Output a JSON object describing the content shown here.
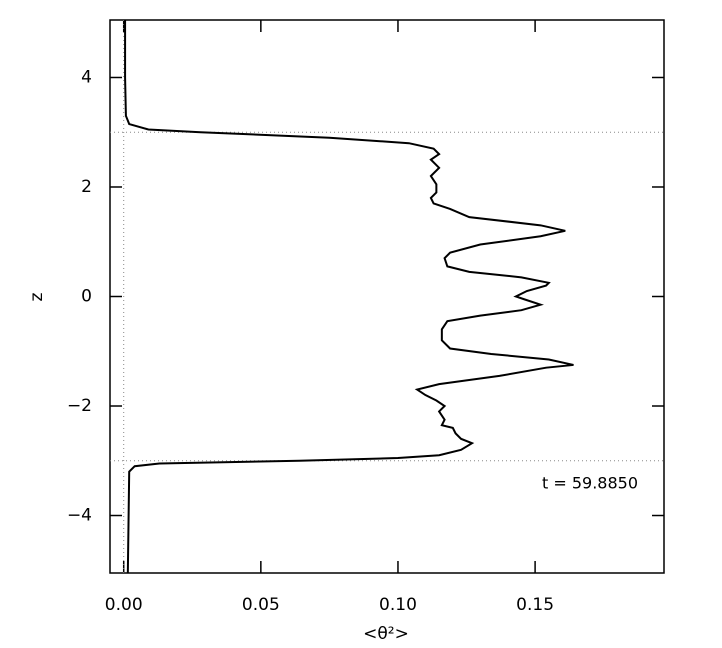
{
  "chart_data": {
    "type": "line",
    "xlabel": "<θ²>",
    "ylabel": "z",
    "annotation": "t = 59.8850",
    "xlim": [
      -0.005,
      0.197
    ],
    "ylim": [
      -5.05,
      5.05
    ],
    "xticks": [
      {
        "value": 0,
        "label": "0.00"
      },
      0.05,
      {
        "value": 0.1,
        "label": "0.10"
      },
      0.15
    ],
    "yticks": [
      -4,
      -2,
      0,
      2,
      4
    ],
    "hlines": [
      3,
      -3
    ],
    "vlines": [
      0
    ],
    "series": [
      {
        "color": "#000000",
        "x": [
          0.0015,
          0.002,
          0.004,
          0.013,
          0.064,
          0.1,
          0.115,
          0.123,
          0.127,
          0.123,
          0.121,
          0.12,
          0.116,
          0.117,
          0.115,
          0.117,
          0.114,
          0.11,
          0.107,
          0.115,
          0.137,
          0.154,
          0.164,
          0.155,
          0.134,
          0.119,
          0.116,
          0.116,
          0.118,
          0.13,
          0.145,
          0.152,
          0.146,
          0.143,
          0.147,
          0.154,
          0.155,
          0.145,
          0.126,
          0.118,
          0.117,
          0.119,
          0.13,
          0.152,
          0.161,
          0.152,
          0.126,
          0.119,
          0.113,
          0.112,
          0.114,
          0.114,
          0.112,
          0.115,
          0.112,
          0.115,
          0.113,
          0.104,
          0.075,
          0.028,
          0.009,
          0.002,
          0.0008,
          0.0005,
          0.0005
        ],
        "values": [
          -5.05,
          -3.2,
          -3.1,
          -3.05,
          -3.0,
          -2.95,
          -2.9,
          -2.8,
          -2.68,
          -2.6,
          -2.5,
          -2.4,
          -2.35,
          -2.25,
          -2.1,
          -2.0,
          -1.9,
          -1.8,
          -1.7,
          -1.6,
          -1.45,
          -1.3,
          -1.25,
          -1.15,
          -1.05,
          -0.95,
          -0.8,
          -0.6,
          -0.45,
          -0.35,
          -0.25,
          -0.15,
          -0.05,
          0.0,
          0.1,
          0.2,
          0.25,
          0.35,
          0.45,
          0.55,
          0.7,
          0.8,
          0.95,
          1.1,
          1.2,
          1.3,
          1.45,
          1.6,
          1.7,
          1.8,
          1.9,
          2.05,
          2.2,
          2.35,
          2.5,
          2.6,
          2.7,
          2.8,
          2.9,
          3.0,
          3.05,
          3.15,
          3.3,
          4.0,
          5.05
        ]
      }
    ]
  }
}
